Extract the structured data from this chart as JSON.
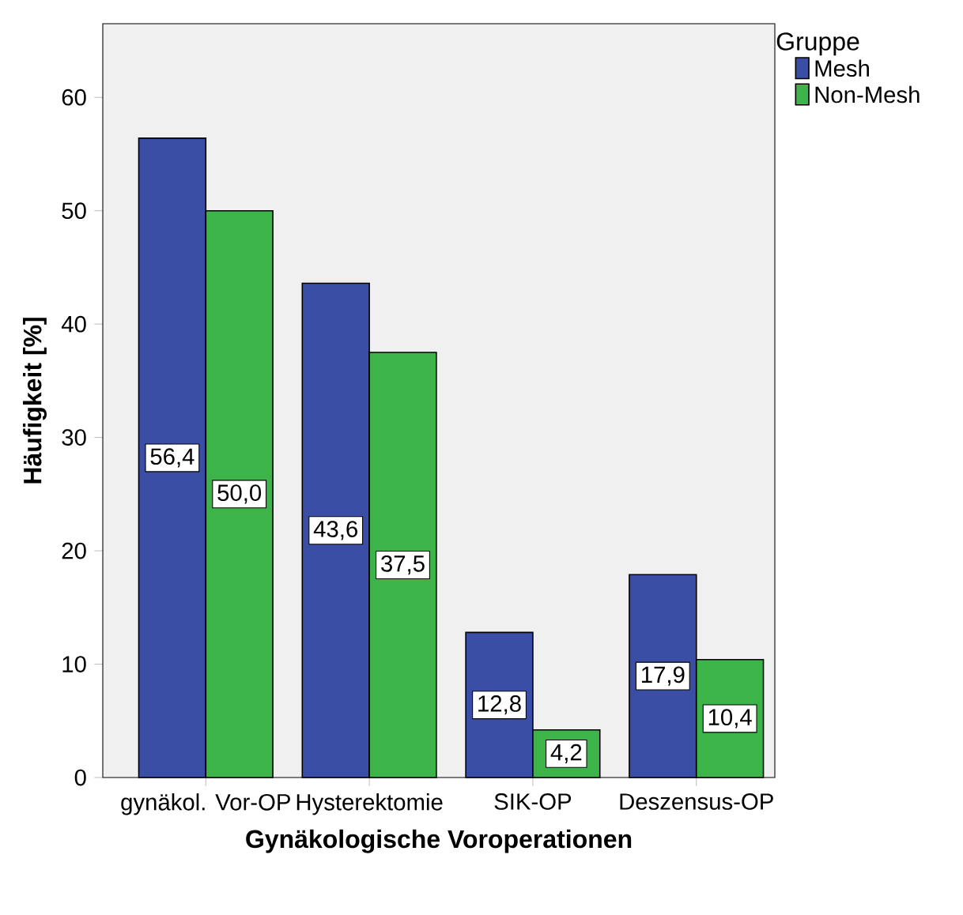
{
  "chart_data": {
    "type": "bar",
    "xlabel": "Gynäkologische Voroperationen",
    "ylabel": "Häufigkeit [%]",
    "legend_title": "Gruppe",
    "legend": "right",
    "categories": [
      "gynäkol. Vor-OP",
      "Hysterektomie",
      "SIK-OP",
      "Deszensus-OP"
    ],
    "series": [
      {
        "name": "Mesh",
        "color": "#3b4ea6",
        "values": [
          56.4,
          43.6,
          12.8,
          17.9
        ],
        "value_labels": [
          "56,4",
          "43,6",
          "12,8",
          "17,9"
        ]
      },
      {
        "name": "Non-Mesh",
        "color": "#3cb44a",
        "values": [
          50.0,
          37.5,
          4.2,
          10.4
        ],
        "value_labels": [
          "50,0",
          "37,5",
          "4,2",
          "10,4"
        ]
      }
    ],
    "ylim": [
      0,
      66.5
    ],
    "yticks": [
      0,
      10,
      20,
      30,
      40,
      50,
      60
    ]
  }
}
